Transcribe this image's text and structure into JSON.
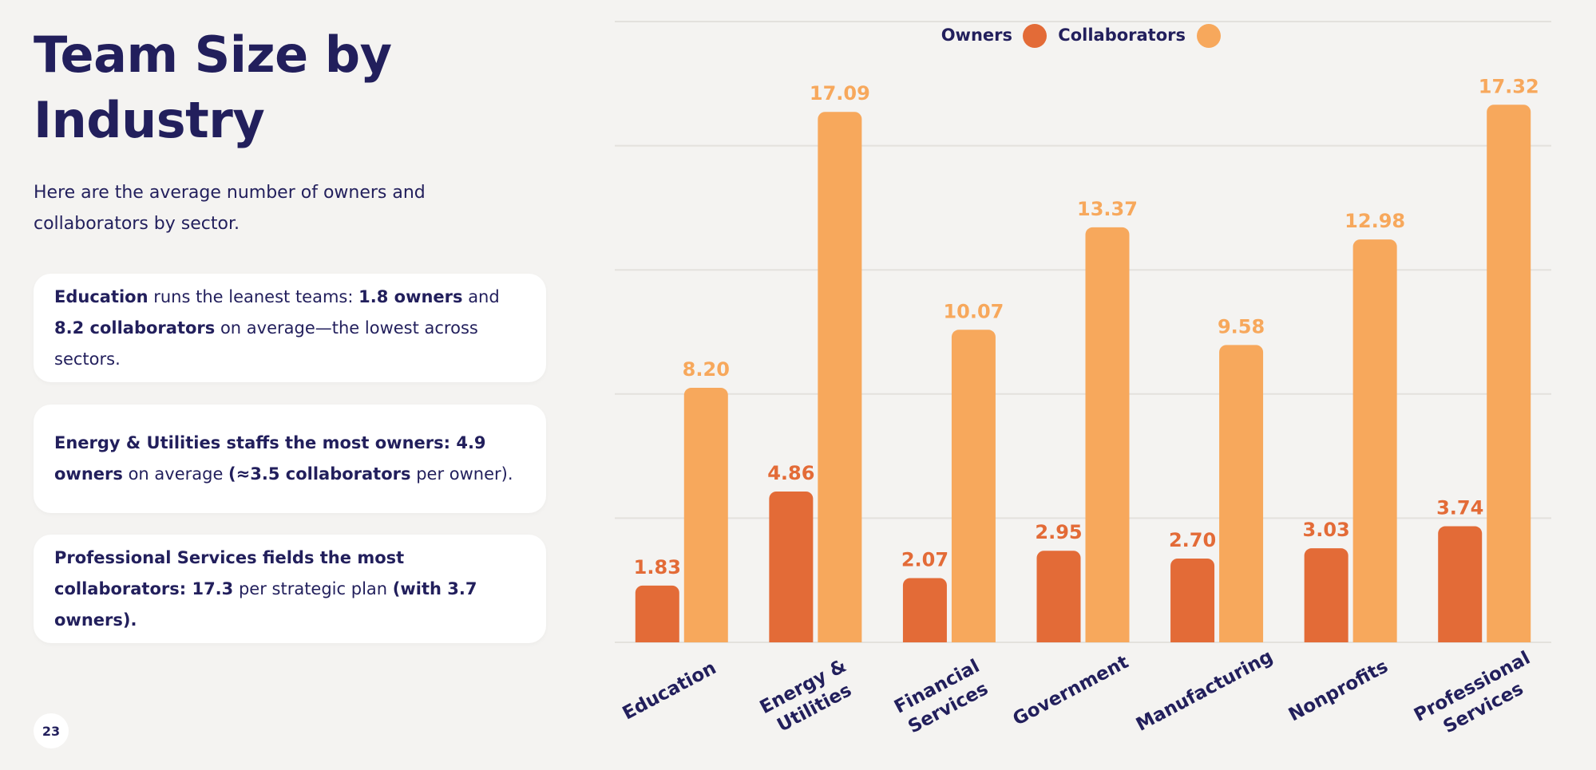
{
  "title": "Team Size by Industry",
  "subtitle": "Here are the average number of owners and collaborators by sector.",
  "cards": [
    {
      "segments": [
        {
          "text": "Education",
          "bold": true
        },
        {
          "text": " runs the leanest teams: ",
          "bold": false
        },
        {
          "text": "1.8 owners",
          "bold": true
        },
        {
          "text": " and ",
          "bold": false
        },
        {
          "text": "8.2 collaborators",
          "bold": true
        },
        {
          "text": " on average—the lowest across sectors.",
          "bold": false
        }
      ]
    },
    {
      "segments": [
        {
          "text": "Energy & Utilities staffs the most owners: 4.9 owners",
          "bold": true
        },
        {
          "text": " on average ",
          "bold": false
        },
        {
          "text": "(≈3.5 collaborators",
          "bold": true
        },
        {
          "text": " per owner).",
          "bold": false
        }
      ]
    },
    {
      "segments": [
        {
          "text": "Professional Services fields the most collaborators: 17.3",
          "bold": true
        },
        {
          "text": " per strategic plan ",
          "bold": false
        },
        {
          "text": "(with 3.7 owners).",
          "bold": true
        }
      ]
    }
  ],
  "page_number": "23",
  "colors": {
    "owners": "#e36b37",
    "collaborators": "#f7a85c",
    "text": "#221f5c",
    "grid": "#e3e1dd"
  },
  "chart_data": {
    "type": "bar",
    "categories": [
      "Education",
      "Energy &\nUtilities",
      "Financial\nServices",
      "Government",
      "Manufacturing",
      "Nonprofits",
      "Professional\nServices"
    ],
    "series": [
      {
        "name": "Owners",
        "values": [
          1.83,
          4.86,
          2.07,
          2.95,
          2.7,
          3.03,
          3.74
        ],
        "labels": [
          "1.83",
          "4.86",
          "2.07",
          "2.95",
          "2.70",
          "3.03",
          "3.74"
        ]
      },
      {
        "name": "Collaborators",
        "values": [
          8.2,
          17.09,
          10.07,
          13.37,
          9.58,
          12.98,
          17.32
        ],
        "labels": [
          "8.20",
          "17.09",
          "10.07",
          "13.37",
          "9.58",
          "12.98",
          "17.32"
        ]
      }
    ],
    "ylim": [
      0,
      20
    ],
    "grid": true,
    "legend": "top-center",
    "xlabel": "",
    "ylabel": ""
  }
}
